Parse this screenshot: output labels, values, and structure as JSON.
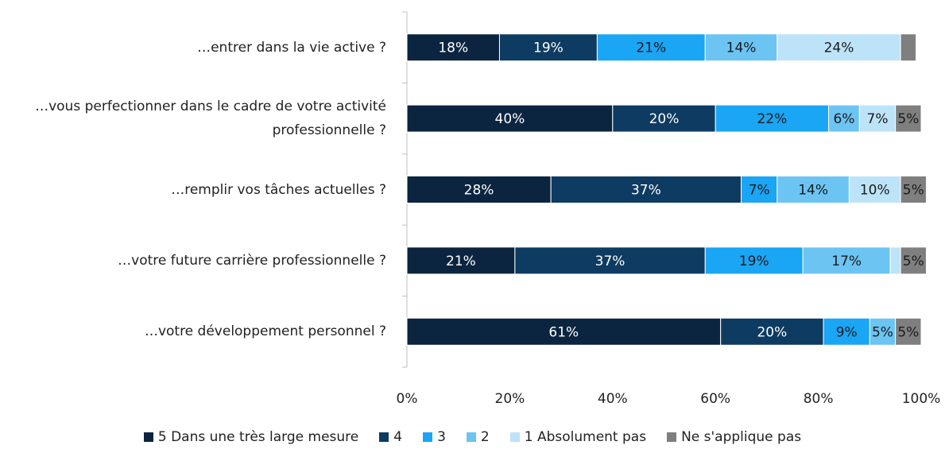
{
  "chart_data": {
    "type": "bar",
    "orientation": "horizontal",
    "stacked": true,
    "categories": [
      "…entrer dans la vie active ?",
      "…vous perfectionner dans le cadre de votre activité professionnelle ?",
      "…remplir vos tâches actuelles ?",
      "…votre future carrière professionnelle ?",
      "…votre développement personnel ?"
    ],
    "series": [
      {
        "name": "5 Dans une très large mesure",
        "color": "#0b2540",
        "label_color": "#ffffff",
        "values": [
          18,
          40,
          28,
          21,
          61
        ],
        "value_labels": [
          "18%",
          "40%",
          "28%",
          "21%",
          "61%"
        ]
      },
      {
        "name": "4",
        "color": "#0e3b61",
        "label_color": "#ffffff",
        "values": [
          19,
          20,
          37,
          37,
          20
        ],
        "value_labels": [
          "19%",
          "20%",
          "37%",
          "37%",
          "20%"
        ]
      },
      {
        "name": "3",
        "color": "#1aa5f5",
        "label_color": "#1a1a1a",
        "values": [
          21,
          22,
          7,
          19,
          9
        ],
        "value_labels": [
          "21%",
          "22%",
          "7%",
          "19%",
          "9%"
        ]
      },
      {
        "name": "2",
        "color": "#6cc4f3",
        "label_color": "#1a1a1a",
        "values": [
          14,
          6,
          14,
          17,
          5
        ],
        "value_labels": [
          "14%",
          "6%",
          "14%",
          "17%",
          "5%"
        ]
      },
      {
        "name": "1 Absolument pas",
        "color": "#bde3f8",
        "label_color": "#1a1a1a",
        "values": [
          24,
          7,
          10,
          2,
          0
        ],
        "value_labels": [
          "24%",
          "7%",
          "10%",
          null,
          null
        ]
      },
      {
        "name": "Ne s'applique pas",
        "color": "#7f7f7f",
        "label_color": "#1a1a1a",
        "values": [
          3,
          5,
          5,
          5,
          5
        ],
        "value_labels": [
          null,
          "5%",
          "5%",
          "5%",
          "5%"
        ]
      }
    ],
    "xlim": [
      0,
      100
    ],
    "xticks": [
      {
        "value": 0,
        "label": "0%"
      },
      {
        "value": 20,
        "label": "20%"
      },
      {
        "value": 40,
        "label": "40%"
      },
      {
        "value": 60,
        "label": "60%"
      },
      {
        "value": 80,
        "label": "80%"
      },
      {
        "value": 100,
        "label": "100%"
      }
    ],
    "grid": false
  }
}
